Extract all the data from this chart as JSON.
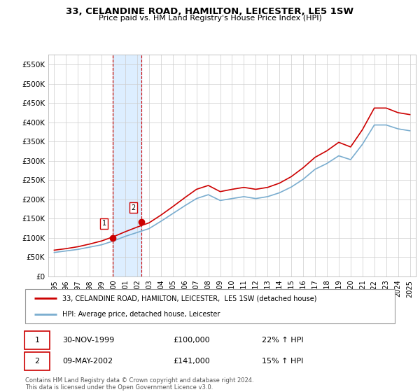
{
  "title": "33, CELANDINE ROAD, HAMILTON, LEICESTER, LE5 1SW",
  "subtitle": "Price paid vs. HM Land Registry's House Price Index (HPI)",
  "legend_line1": "33, CELANDINE ROAD, HAMILTON, LEICESTER,  LE5 1SW (detached house)",
  "legend_line2": "HPI: Average price, detached house, Leicester",
  "footer": "Contains HM Land Registry data © Crown copyright and database right 2024.\nThis data is licensed under the Open Government Licence v3.0.",
  "sale1_date": 1999.92,
  "sale1_price": 100000,
  "sale1_label": "1",
  "sale1_text": "30-NOV-1999",
  "sale1_hpi": "22% ↑ HPI",
  "sale2_date": 2002.36,
  "sale2_price": 141000,
  "sale2_label": "2",
  "sale2_text": "09-MAY-2002",
  "sale2_hpi": "15% ↑ HPI",
  "ylim": [
    0,
    575000
  ],
  "xlim": [
    1994.5,
    2025.5
  ],
  "red_color": "#cc0000",
  "blue_color": "#7aadcf",
  "shade_color": "#ddeeff",
  "grid_color": "#cccccc",
  "background_color": "#ffffff",
  "years": [
    1995,
    1996,
    1997,
    1998,
    1999,
    2000,
    2001,
    2002,
    2003,
    2004,
    2005,
    2006,
    2007,
    2008,
    2009,
    2010,
    2011,
    2012,
    2013,
    2014,
    2015,
    2016,
    2017,
    2018,
    2019,
    2020,
    2021,
    2022,
    2023,
    2024,
    2025
  ],
  "hpi_values": [
    62000,
    66000,
    70000,
    76000,
    82000,
    92000,
    104000,
    114000,
    124000,
    143000,
    163000,
    183000,
    202000,
    212000,
    197000,
    202000,
    207000,
    202000,
    207000,
    217000,
    232000,
    252000,
    278000,
    293000,
    313000,
    303000,
    343000,
    393000,
    393000,
    383000,
    378000
  ],
  "red_values": [
    68000,
    72000,
    77000,
    84000,
    92000,
    103000,
    116000,
    128000,
    139000,
    159000,
    181000,
    204000,
    226000,
    236000,
    220000,
    226000,
    231000,
    226000,
    231000,
    242000,
    259000,
    282000,
    309000,
    326000,
    348000,
    336000,
    381000,
    437000,
    437000,
    425000,
    420000
  ]
}
